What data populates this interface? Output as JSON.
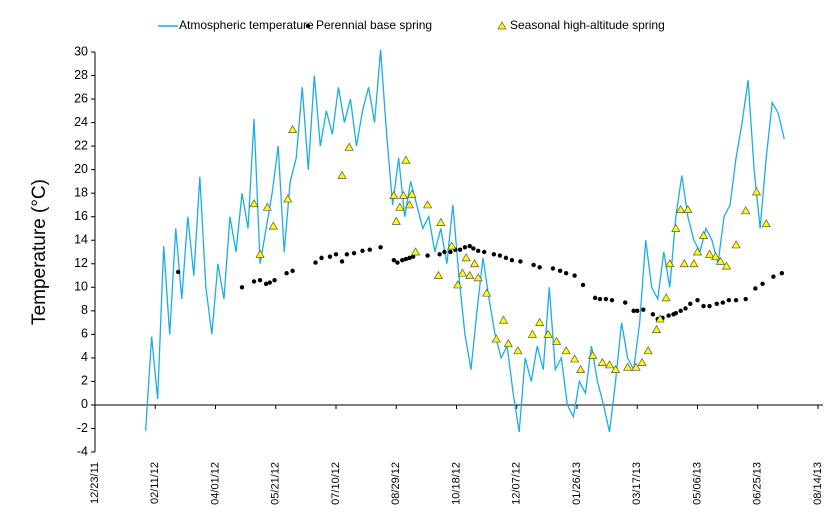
{
  "chart_data": {
    "type": "line",
    "ylabel": "Temperature (°C)",
    "ylim": [
      -4,
      30
    ],
    "yticks": [
      -4,
      -2,
      0,
      2,
      4,
      6,
      8,
      10,
      12,
      14,
      16,
      18,
      20,
      22,
      24,
      26,
      28,
      30
    ],
    "xlim": [
      "2011-12-23",
      "2013-08-14"
    ],
    "xticks": [
      {
        "value": "2011-12-23",
        "label": "12/23/11"
      },
      {
        "value": "2012-02-11",
        "label": "02/11/12"
      },
      {
        "value": "2012-04-01",
        "label": "04/01/12"
      },
      {
        "value": "2012-05-21",
        "label": "05/21/12"
      },
      {
        "value": "2012-07-10",
        "label": "07/10/12"
      },
      {
        "value": "2012-08-29",
        "label": "08/29/12"
      },
      {
        "value": "2012-10-18",
        "label": "10/18/12"
      },
      {
        "value": "2012-12-07",
        "label": "12/07/12"
      },
      {
        "value": "2013-01-26",
        "label": "01/26/13"
      },
      {
        "value": "2013-03-17",
        "label": "03/17/13"
      },
      {
        "value": "2013-05-06",
        "label": "05/06/13"
      },
      {
        "value": "2013-06-25",
        "label": "06/25/13"
      },
      {
        "value": "2013-08-14",
        "label": "08/14/13"
      }
    ],
    "grid": false,
    "legend": "top",
    "series": [
      {
        "name": "Atmospheric temperature",
        "type": "line",
        "color": "#1aaee5",
        "x": [
          "2012-02-03",
          "2012-02-08",
          "2012-02-13",
          "2012-02-18",
          "2012-02-23",
          "2012-02-28",
          "2012-03-04",
          "2012-03-09",
          "2012-03-14",
          "2012-03-19",
          "2012-03-24",
          "2012-03-29",
          "2012-04-03",
          "2012-04-08",
          "2012-04-13",
          "2012-04-18",
          "2012-04-23",
          "2012-04-28",
          "2012-05-03",
          "2012-05-08",
          "2012-05-13",
          "2012-05-18",
          "2012-05-23",
          "2012-05-28",
          "2012-06-02",
          "2012-06-07",
          "2012-06-12",
          "2012-06-17",
          "2012-06-22",
          "2012-06-27",
          "2012-07-02",
          "2012-07-07",
          "2012-07-12",
          "2012-07-17",
          "2012-07-22",
          "2012-07-27",
          "2012-08-01",
          "2012-08-06",
          "2012-08-11",
          "2012-08-16",
          "2012-08-21",
          "2012-08-26",
          "2012-08-31",
          "2012-09-05",
          "2012-09-10",
          "2012-09-15",
          "2012-09-20",
          "2012-09-25",
          "2012-09-30",
          "2012-10-05",
          "2012-10-10",
          "2012-10-15",
          "2012-10-20",
          "2012-10-25",
          "2012-10-30",
          "2012-11-04",
          "2012-11-09",
          "2012-11-14",
          "2012-11-19",
          "2012-11-24",
          "2012-11-29",
          "2012-12-04",
          "2012-12-09",
          "2012-12-14",
          "2012-12-19",
          "2012-12-24",
          "2012-12-29",
          "2013-01-03",
          "2013-01-08",
          "2013-01-13",
          "2013-01-18",
          "2013-01-23",
          "2013-01-28",
          "2013-02-02",
          "2013-02-07",
          "2013-02-12",
          "2013-02-17",
          "2013-02-22",
          "2013-02-27",
          "2013-03-04",
          "2013-03-09",
          "2013-03-14",
          "2013-03-19",
          "2013-03-24",
          "2013-03-29",
          "2013-04-03",
          "2013-04-08",
          "2013-04-13",
          "2013-04-18",
          "2013-04-23",
          "2013-04-28",
          "2013-05-03",
          "2013-05-08",
          "2013-05-13",
          "2013-05-18",
          "2013-05-23",
          "2013-05-28",
          "2013-06-02",
          "2013-06-07",
          "2013-06-12",
          "2013-06-17",
          "2013-06-22",
          "2013-06-27",
          "2013-07-02",
          "2013-07-07",
          "2013-07-12",
          "2013-07-17"
        ],
        "values": [
          -2.2,
          5.8,
          0.5,
          13.5,
          6,
          15,
          9,
          16,
          11,
          19.4,
          10,
          6,
          12,
          9,
          16,
          13,
          18,
          15,
          24.3,
          12,
          15,
          18,
          22,
          13,
          19,
          21,
          27,
          20,
          28,
          22,
          25,
          23,
          27,
          24,
          26,
          22,
          25,
          27,
          24,
          30.2,
          23,
          17,
          21,
          16,
          19,
          17,
          15,
          16,
          13,
          15,
          12,
          17,
          11,
          6,
          3,
          8,
          12.5,
          9,
          6,
          4,
          5,
          1,
          -2.3,
          4,
          2,
          5,
          3,
          10,
          3,
          4,
          0,
          -1,
          2,
          1,
          5,
          2,
          0,
          -2.3,
          2,
          7,
          4,
          3,
          7,
          14,
          10,
          9,
          13,
          10,
          16,
          19.5,
          16,
          14,
          13,
          15,
          14,
          12,
          16,
          17,
          21,
          24,
          27.6,
          20,
          15,
          21,
          25.7,
          24.8,
          22.6
        ]
      },
      {
        "name": "Perennial base spring",
        "type": "scatter",
        "marker": "circle",
        "color": "#000000",
        "x": [
          "2012-03-01",
          "2012-04-23",
          "2012-05-03",
          "2012-05-08",
          "2012-05-13",
          "2012-05-16",
          "2012-05-20",
          "2012-05-30",
          "2012-06-04",
          "2012-06-23",
          "2012-06-28",
          "2012-07-05",
          "2012-07-10",
          "2012-07-15",
          "2012-07-19",
          "2012-07-25",
          "2012-08-01",
          "2012-08-07",
          "2012-08-16",
          "2012-08-27",
          "2012-08-30",
          "2012-09-03",
          "2012-09-06",
          "2012-09-09",
          "2012-09-12",
          "2012-09-24",
          "2012-10-04",
          "2012-10-08",
          "2012-10-13",
          "2012-10-17",
          "2012-10-21",
          "2012-10-25",
          "2012-10-29",
          "2012-11-01",
          "2012-11-05",
          "2012-11-10",
          "2012-11-18",
          "2012-11-23",
          "2012-11-28",
          "2012-12-03",
          "2012-12-10",
          "2012-12-21",
          "2012-12-26",
          "2013-01-06",
          "2013-01-12",
          "2013-01-17",
          "2013-01-24",
          "2013-01-31",
          "2013-02-10",
          "2013-02-14",
          "2013-02-19",
          "2013-02-24",
          "2013-03-07",
          "2013-03-14",
          "2013-03-17",
          "2013-03-22",
          "2013-03-30",
          "2013-04-03",
          "2013-04-07",
          "2013-04-12",
          "2013-04-16",
          "2013-04-18",
          "2013-04-22",
          "2013-04-26",
          "2013-04-30",
          "2013-05-06",
          "2013-05-11",
          "2013-05-16",
          "2013-05-22",
          "2013-05-27",
          "2013-06-01",
          "2013-06-07",
          "2013-06-15",
          "2013-06-23",
          "2013-06-29",
          "2013-07-08",
          "2013-07-15"
        ],
        "values": [
          11.3,
          10,
          10.5,
          10.6,
          10.3,
          10.4,
          10.6,
          11.2,
          11.4,
          12.1,
          12.5,
          12.6,
          12.8,
          12.2,
          12.8,
          12.9,
          13.1,
          13.2,
          13.4,
          12.3,
          12.1,
          12.3,
          12.4,
          12.5,
          12.6,
          12.7,
          12.8,
          13,
          13,
          13.2,
          13.2,
          13.4,
          13.5,
          13.3,
          13.1,
          13,
          12.8,
          12.7,
          12.5,
          12.3,
          12.2,
          11.9,
          11.7,
          11.6,
          11.4,
          11.2,
          11,
          10.2,
          9.1,
          9,
          9,
          8.9,
          8.7,
          8,
          8,
          8.1,
          7.7,
          7.3,
          7.4,
          7.6,
          7.7,
          7.8,
          8,
          8.2,
          8.6,
          8.9,
          8.4,
          8.4,
          8.6,
          8.7,
          8.9,
          8.9,
          9,
          9.9,
          10.3,
          10.9,
          11.2
        ]
      },
      {
        "name": "Seasonal high-altitude spring",
        "type": "scatter",
        "marker": "triangle",
        "color": "#ffff00",
        "x": [
          "2012-05-03",
          "2012-05-08",
          "2012-05-14",
          "2012-05-19",
          "2012-05-31",
          "2012-06-04",
          "2012-07-15",
          "2012-07-21",
          "2012-08-27",
          "2012-08-29",
          "2012-09-01",
          "2012-09-04",
          "2012-09-06",
          "2012-09-09",
          "2012-09-11",
          "2012-09-14",
          "2012-09-24",
          "2012-10-03",
          "2012-10-05",
          "2012-10-14",
          "2012-10-19",
          "2012-10-23",
          "2012-10-26",
          "2012-10-29",
          "2012-11-02",
          "2012-11-05",
          "2012-11-12",
          "2012-11-20",
          "2012-11-26",
          "2012-11-30",
          "2012-12-08",
          "2012-12-20",
          "2012-12-26",
          "2013-01-02",
          "2013-01-09",
          "2013-01-17",
          "2013-01-24",
          "2013-01-29",
          "2013-02-08",
          "2013-02-16",
          "2013-02-22",
          "2013-02-27",
          "2013-03-09",
          "2013-03-16",
          "2013-03-21",
          "2013-03-26",
          "2013-04-02",
          "2013-04-05",
          "2013-04-10",
          "2013-04-13",
          "2013-04-18",
          "2013-04-22",
          "2013-04-25",
          "2013-04-28",
          "2013-05-03",
          "2013-05-06",
          "2013-05-11",
          "2013-05-16",
          "2013-05-21",
          "2013-05-25",
          "2013-05-30",
          "2013-06-07",
          "2013-06-15",
          "2013-06-24",
          "2013-07-02"
        ],
        "values": [
          17.1,
          12.8,
          16.8,
          15.2,
          17.5,
          23.4,
          19.5,
          21.9,
          17.8,
          15.6,
          16.8,
          17.8,
          20.8,
          17,
          17.9,
          13,
          17,
          11,
          15.5,
          13.5,
          10.2,
          11.2,
          12.5,
          11,
          12,
          10.8,
          9.5,
          5.6,
          7.2,
          5.2,
          4.6,
          6,
          7,
          6,
          5.4,
          4.6,
          3.9,
          3,
          4.2,
          3.6,
          3.4,
          3,
          3.2,
          3.2,
          3.6,
          4.6,
          6.4,
          7.3,
          9.1,
          12,
          15,
          16.6,
          12,
          16.6,
          12,
          13,
          14.4,
          12.8,
          12.6,
          12.2,
          11.8,
          13.6,
          16.5,
          18.1,
          15.4
        ]
      }
    ]
  }
}
